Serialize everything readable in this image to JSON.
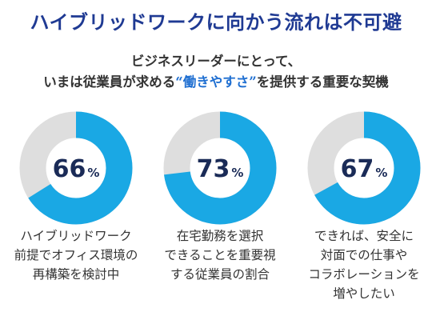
{
  "header": {
    "title": "ハイブリッドワークに向かう流れは不可避",
    "subtitle_line1": "ビジネスリーダーにとって、",
    "subtitle_line2_pre": "いまは従業員が求める",
    "subtitle_open_quote": "“",
    "subtitle_highlight": "働きやすさ",
    "subtitle_close_quote": "”",
    "subtitle_line2_post": "を提供する重要な契機"
  },
  "colors": {
    "accent": "#1aa8e4",
    "track": "#dedede",
    "title": "#1f3a93",
    "highlight": "#1f6fd1",
    "value_text": "#1a2b57"
  },
  "chart_data": {
    "type": "pie",
    "style": "donut",
    "unit": "%",
    "items": [
      {
        "value": 66,
        "caption": "ハイブリッドワーク\n前提でオフィス環境の\n再構築を検討中"
      },
      {
        "value": 73,
        "caption": "在宅勤務を選択\nできることを重要視\nする従業員の割合"
      },
      {
        "value": 67,
        "caption": "できれば、安全に\n対面での仕事や\nコラボレーションを\n増やしたい"
      }
    ]
  }
}
